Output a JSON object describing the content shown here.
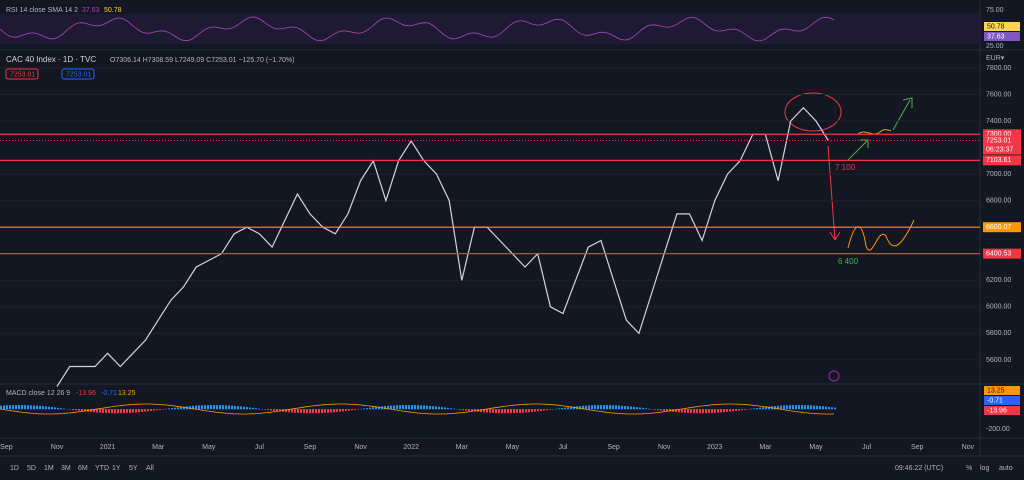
{
  "header": {
    "symbol": "CAC 40 Index · 1D · TVC",
    "ohlc": "O7306.14 H7308.59 L7249.09 C7253.01 −125.70 (−1.70%)",
    "bid": "7253.01",
    "ask": "7253.01"
  },
  "rsi": {
    "title": "RSI 14 close SMA 14 2",
    "v1": "37.63",
    "v2": "50.78",
    "scale": [
      "75.00",
      "50.78",
      "37.63",
      "25.00"
    ]
  },
  "macd": {
    "title": "MACD close 12 26 9",
    "v1": "-13.96",
    "v2": "-0.71",
    "v3": "13.25",
    "scale": [
      "13.25",
      "-0.71",
      "-13.96",
      "-200.00"
    ]
  },
  "toolbar": {
    "ranges": [
      "1D",
      "5D",
      "1M",
      "3M",
      "6M",
      "YTD",
      "1Y",
      "5Y",
      "All"
    ],
    "clock": "09:46:22 (UTC)",
    "pct": "%",
    "log": "log",
    "auto": "auto"
  },
  "currency": "EUR▾",
  "chart_data": {
    "type": "line",
    "color": "#d1d4dc",
    "x_labels": [
      "Sep",
      "Nov",
      "2021",
      "Mar",
      "May",
      "Jul",
      "Sep",
      "Nov",
      "2022",
      "Mar",
      "May",
      "Jul",
      "Sep",
      "Nov",
      "2023",
      "Mar",
      "May",
      "Jul",
      "Sep",
      "Nov"
    ],
    "values": [
      5400,
      5550,
      5550,
      5550,
      5650,
      5550,
      5650,
      5750,
      5900,
      6050,
      6150,
      6300,
      6350,
      6400,
      6550,
      6600,
      6550,
      6450,
      6650,
      6850,
      6700,
      6600,
      6550,
      6700,
      6950,
      7100,
      6800,
      7100,
      7250,
      7100,
      7000,
      6800,
      6200,
      6600,
      6600,
      6500,
      6400,
      6300,
      6400,
      6000,
      5950,
      6200,
      6450,
      6500,
      6200,
      5900,
      5800,
      6100,
      6400,
      6700,
      6700,
      6500,
      6800,
      7000,
      7100,
      7300,
      7300,
      6950,
      7400,
      7500,
      7400,
      7250
    ],
    "ylim": [
      5426,
      7920
    ],
    "yticks": [
      {
        "value": 5600,
        "label": "5600.00"
      },
      {
        "value": 5800,
        "label": "5800.00"
      },
      {
        "value": 6000,
        "label": "6000.00"
      },
      {
        "value": 6200,
        "label": "6200.00"
      },
      {
        "value": 6800,
        "label": "6800.00"
      },
      {
        "value": 7000,
        "label": "7000.00"
      },
      {
        "value": 7400,
        "label": "7400.00"
      },
      {
        "value": 7600,
        "label": "7600.00"
      },
      {
        "value": 7800,
        "label": "7800.00"
      }
    ],
    "levels": [
      {
        "value": 7300,
        "label": "7300.00",
        "color": "#f23645"
      },
      {
        "value": 7103.61,
        "color": "#f23645"
      },
      {
        "value": 6600.07,
        "color": "#ff9800"
      },
      {
        "value": 6400.53,
        "color": "#f23645"
      }
    ],
    "last": {
      "value": 7253.01,
      "countdown": "06:23:37"
    },
    "annotations": [
      {
        "text": "7 100",
        "color": "#f23645"
      },
      {
        "text": "6 400",
        "color": "#4caf50"
      }
    ]
  }
}
